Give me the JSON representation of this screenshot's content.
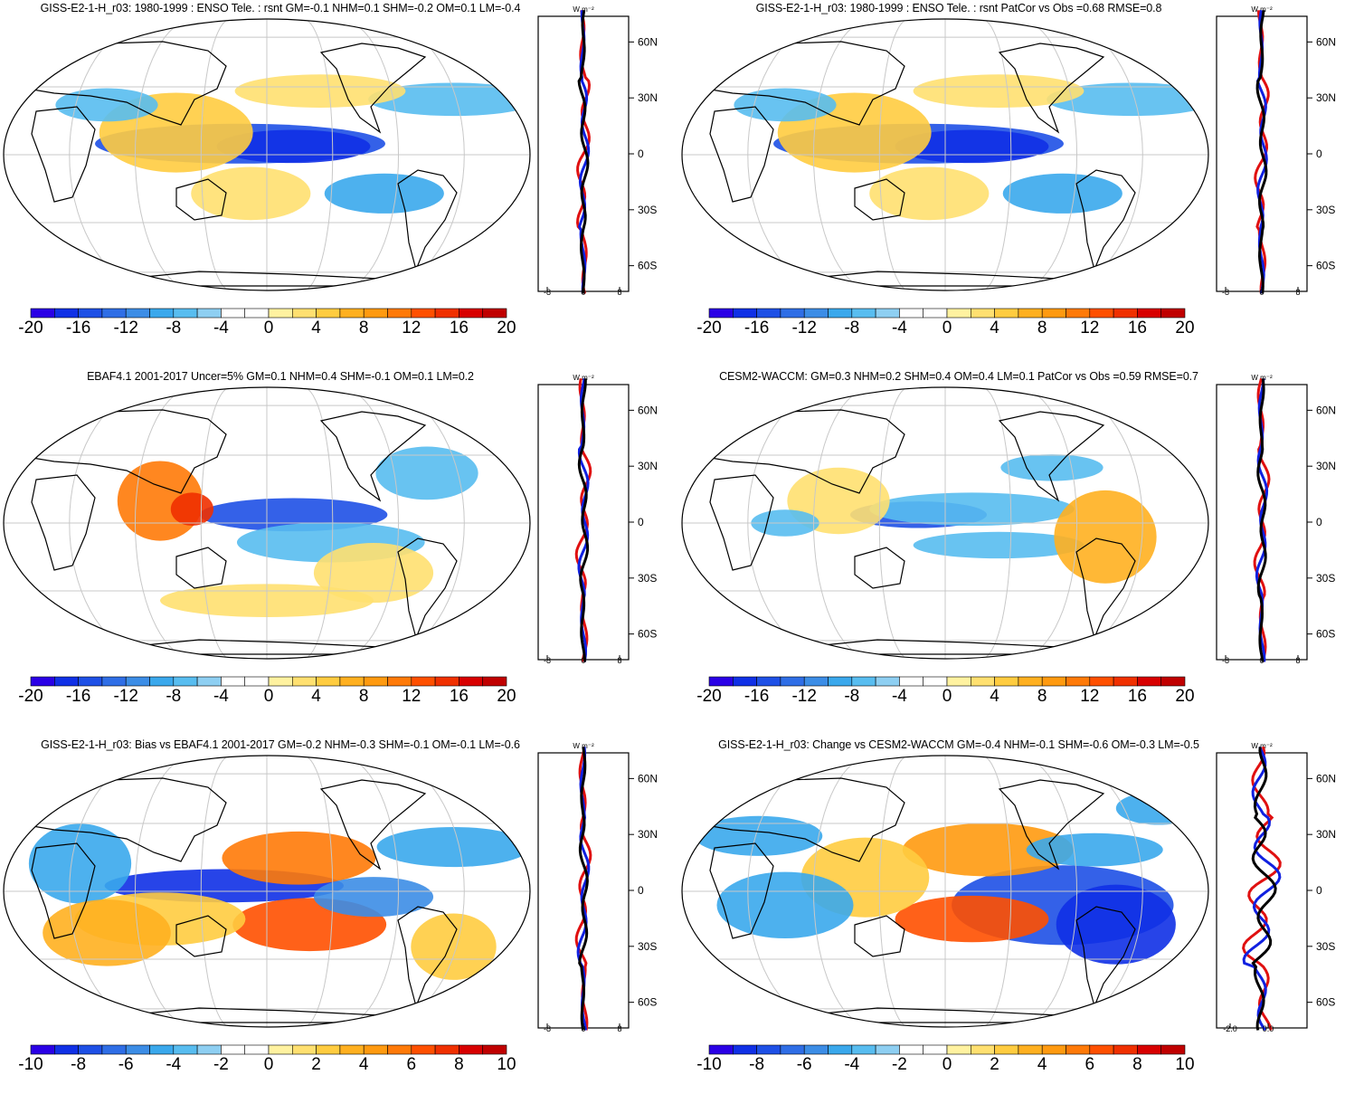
{
  "units": "W m⁻²",
  "latitude_labels": [
    "60N",
    "30N",
    "0",
    "30S",
    "60S"
  ],
  "palette": {
    "land": "#000000",
    "grid": "#c8c8c8",
    "zonal_model": "#000000",
    "zonal_ref1": "#e01010",
    "zonal_ref2": "#1020e0",
    "colors": [
      "#2a00e6",
      "#1030e6",
      "#1e50e6",
      "#2f6ee6",
      "#3c8de6",
      "#3aa8ec",
      "#58bdf0",
      "#8ecff2",
      "#ffffff",
      "#ffffff",
      "#fff2a0",
      "#ffe070",
      "#ffcc40",
      "#ffb020",
      "#ff9a10",
      "#ff7a08",
      "#ff5000",
      "#f03000",
      "#d80000",
      "#c00000"
    ]
  },
  "panels": [
    {
      "title": "GISS-E2-1-H_r03: 1980-1999 : ENSO Tele. : rsnt GM=-0.1 NHM=0.1 SHM=-0.2 OM=0.1 LM=-0.4",
      "colorbar_labels": [
        "-20",
        "-16",
        "-12",
        "-8",
        "-4",
        "0",
        "4",
        "8",
        "12",
        "16",
        "20"
      ],
      "zonal_ticks": [
        "-8",
        "0",
        "8"
      ]
    },
    {
      "title": "GISS-E2-1-H_r03: 1980-1999 : ENSO Tele. : rsnt PatCor vs Obs =0.68 RMSE=0.8",
      "colorbar_labels": [
        "-20",
        "-16",
        "-12",
        "-8",
        "-4",
        "0",
        "4",
        "8",
        "12",
        "16",
        "20"
      ],
      "zonal_ticks": [
        "-8",
        "0",
        "8"
      ]
    },
    {
      "title": "EBAF4.1 2001-2017 Uncer=5% GM=0.1 NHM=0.4 SHM=-0.1 OM=0.1 LM=0.2",
      "colorbar_labels": [
        "-20",
        "-16",
        "-12",
        "-8",
        "-4",
        "0",
        "4",
        "8",
        "12",
        "16",
        "20"
      ],
      "zonal_ticks": [
        "-8",
        "0",
        "8"
      ]
    },
    {
      "title": "CESM2-WACCM: GM=0.3 NHM=0.2 SHM=0.4 OM=0.4 LM=0.1 PatCor vs Obs =0.59 RMSE=0.7",
      "colorbar_labels": [
        "-20",
        "-16",
        "-12",
        "-8",
        "-4",
        "0",
        "4",
        "8",
        "12",
        "16",
        "20"
      ],
      "zonal_ticks": [
        "-8",
        "0",
        "8"
      ]
    },
    {
      "title": "GISS-E2-1-H_r03: Bias vs EBAF4.1 2001-2017 GM=-0.2 NHM=-0.3 SHM=-0.1 OM=-0.1 LM=-0.6",
      "colorbar_labels": [
        "-10",
        "-8",
        "-6",
        "-4",
        "-2",
        "0",
        "2",
        "4",
        "6",
        "8",
        "10"
      ],
      "zonal_ticks": [
        "-8",
        "0",
        "8"
      ]
    },
    {
      "title": "GISS-E2-1-H_r03: Change vs CESM2-WACCM GM=-0.4 NHM=-0.1 SHM=-0.6 OM=-0.3 LM=-0.5",
      "colorbar_labels": [
        "-10",
        "-8",
        "-6",
        "-4",
        "-2",
        "0",
        "2",
        "4",
        "6",
        "8",
        "10"
      ],
      "zonal_ticks": [
        "-2.0",
        "0.0"
      ]
    }
  ]
}
